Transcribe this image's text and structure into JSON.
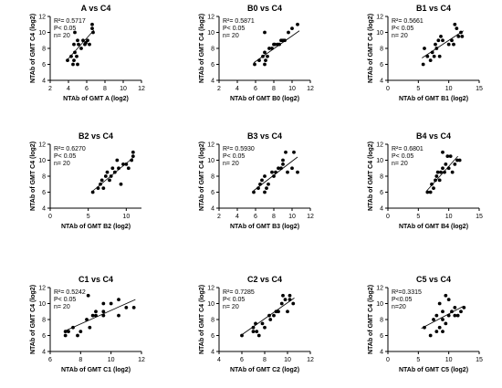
{
  "chart_data": [
    {
      "type": "scatter",
      "title": "A vs C4",
      "xlabel": "NTAb of GMT A (log2)",
      "ylabel": "NTAb of GMT C4 (log2)",
      "xlim": [
        2,
        12
      ],
      "ylim": [
        4,
        12
      ],
      "xticks": [
        2,
        4,
        6,
        8,
        10,
        12
      ],
      "yticks": [
        4,
        6,
        8,
        10,
        12
      ],
      "stats": {
        "r2": "R²= 0.5717",
        "p": "P< 0.05",
        "n": "n= 20"
      },
      "x": [
        3.9,
        4.3,
        4.5,
        4.6,
        4.7,
        4.9,
        5.0,
        4.6,
        5.1,
        5.4,
        5.6,
        5.8,
        5.9,
        6.1,
        6.3,
        6.6,
        6.6,
        6.7,
        4.7,
        5.0
      ],
      "y": [
        6.5,
        7.0,
        6.0,
        6.5,
        7.5,
        7.0,
        6.0,
        8.5,
        8.5,
        8.0,
        9.0,
        8.5,
        8.7,
        9.0,
        8.5,
        10.5,
        11.0,
        10.0,
        10.0,
        9.0
      ],
      "fit": [
        [
          3.9,
          6.6
        ],
        [
          6.8,
          10.3
        ]
      ]
    },
    {
      "type": "scatter",
      "title": "B0 vs C4",
      "xlabel": "NTAb of GMT B0 (log2)",
      "ylabel": "NTAb of GMT C4 (log2)",
      "xlim": [
        2,
        12
      ],
      "ylim": [
        4,
        12
      ],
      "xticks": [
        2,
        4,
        6,
        8,
        10,
        12
      ],
      "yticks": [
        4,
        6,
        8,
        10,
        12
      ],
      "stats": {
        "r2": "R²= 0.5871",
        "p": "P< 0.05",
        "n": "n= 20"
      },
      "x": [
        5.9,
        6.4,
        6.8,
        7.0,
        7.0,
        7.1,
        7.3,
        7.5,
        7.8,
        8.0,
        8.1,
        8.4,
        8.6,
        8.8,
        9.0,
        9.2,
        9.6,
        10.0,
        10.6,
        7.0
      ],
      "y": [
        6.0,
        6.5,
        7.0,
        6.0,
        7.5,
        6.5,
        7.0,
        8.0,
        8.0,
        8.5,
        8.5,
        8.5,
        8.5,
        9.0,
        9.0,
        9.0,
        10.0,
        10.5,
        11.0,
        10.0
      ],
      "fit": [
        [
          5.8,
          6.2
        ],
        [
          10.8,
          10.2
        ]
      ]
    },
    {
      "type": "scatter",
      "title": "B1 vs C4",
      "xlabel": "NTAb of GMT B1 (log2)",
      "ylabel": "NTAb of GMT C4 (log2)",
      "xlim": [
        0,
        15
      ],
      "ylim": [
        4,
        12
      ],
      "xticks": [
        0,
        5,
        10,
        15
      ],
      "yticks": [
        4,
        6,
        8,
        10,
        12
      ],
      "stats": {
        "r2": "R²= 0.5661",
        "p": "P< 0.05",
        "n": "n= 20"
      },
      "x": [
        5.8,
        6.0,
        6.5,
        7.0,
        7.3,
        7.6,
        7.8,
        8.0,
        8.3,
        8.5,
        8.7,
        9.0,
        10.0,
        10.5,
        11.0,
        11.3,
        11.6,
        12.0,
        12.2,
        10.8
      ],
      "y": [
        6.0,
        8.0,
        7.0,
        6.5,
        7.5,
        7.0,
        8.5,
        8.0,
        9.0,
        7.0,
        9.5,
        9.0,
        8.5,
        9.0,
        11.0,
        10.5,
        9.5,
        10.0,
        9.5,
        8.5
      ],
      "fit": [
        [
          5.6,
          6.8
        ],
        [
          12.4,
          10.2
        ]
      ]
    },
    {
      "type": "scatter",
      "title": "B2 vs C4",
      "xlabel": "NTAb of GMT B2 (log2)",
      "ylabel": "NTAb of GMT C4 (log2)",
      "xlim": [
        0,
        12
      ],
      "ylim": [
        4,
        12
      ],
      "xticks": [
        0,
        5,
        10
      ],
      "yticks": [
        4,
        6,
        8,
        10,
        12
      ],
      "stats": {
        "r2": "R²= 0.6270",
        "p": "P< 0.05",
        "n": "n= 20"
      },
      "x": [
        5.6,
        6.3,
        6.6,
        6.8,
        7.0,
        7.3,
        7.5,
        7.8,
        8.0,
        8.2,
        8.5,
        8.8,
        9.0,
        9.3,
        9.6,
        10.0,
        10.3,
        10.7,
        10.9,
        10.9
      ],
      "y": [
        6.0,
        6.5,
        7.0,
        7.5,
        6.5,
        8.0,
        8.5,
        7.5,
        8.0,
        9.0,
        8.5,
        10.0,
        9.0,
        7.0,
        9.5,
        9.5,
        9.0,
        10.0,
        10.5,
        11.0
      ],
      "fit": [
        [
          5.4,
          6.0
        ],
        [
          11.0,
          10.4
        ]
      ]
    },
    {
      "type": "scatter",
      "title": "B3 vs C4",
      "xlabel": "NTAb of GMT B3 (log2)",
      "ylabel": "NTAb of GMT C4 (log2)",
      "xlim": [
        2,
        12
      ],
      "ylim": [
        4,
        12
      ],
      "xticks": [
        2,
        4,
        6,
        8,
        10,
        12
      ],
      "yticks": [
        4,
        6,
        8,
        10,
        12
      ],
      "stats": {
        "r2": "R²= 0.5930",
        "p": "P< 0.05",
        "n": "n= 20"
      },
      "x": [
        5.8,
        6.3,
        6.5,
        6.7,
        7.0,
        7.0,
        7.2,
        7.4,
        7.8,
        8.0,
        8.2,
        8.5,
        8.8,
        9.0,
        9.0,
        9.3,
        9.5,
        10.0,
        10.2,
        10.6
      ],
      "y": [
        6.0,
        6.5,
        7.0,
        7.5,
        6.0,
        8.0,
        6.5,
        7.0,
        8.5,
        8.0,
        8.5,
        9.0,
        9.0,
        9.5,
        10.0,
        11.0,
        8.5,
        9.0,
        11.0,
        8.5
      ],
      "fit": [
        [
          5.8,
          6.2
        ],
        [
          10.6,
          10.4
        ]
      ]
    },
    {
      "type": "scatter",
      "title": "B4 vs C4",
      "xlabel": "NTAb of GMT B4 (log2)",
      "ylabel": "NTAb of GMT C4 (log2)",
      "xlim": [
        0,
        15
      ],
      "ylim": [
        4,
        12
      ],
      "xticks": [
        0,
        5,
        10,
        15
      ],
      "yticks": [
        4,
        6,
        8,
        10,
        12
      ],
      "stats": {
        "r2": "R²= 0.6801",
        "p": "P< 0.05",
        "n": "n= 20"
      },
      "x": [
        6.5,
        7.0,
        7.2,
        7.5,
        7.8,
        8.0,
        8.2,
        8.5,
        8.7,
        9.0,
        9.0,
        9.3,
        9.5,
        9.8,
        10.0,
        10.3,
        10.6,
        11.0,
        11.4,
        11.8
      ],
      "y": [
        6.0,
        6.0,
        7.0,
        6.5,
        7.5,
        8.0,
        8.5,
        7.5,
        8.5,
        9.0,
        11.0,
        8.5,
        9.5,
        10.5,
        9.0,
        10.5,
        8.5,
        9.5,
        10.0,
        10.0
      ],
      "fit": [
        [
          6.3,
          6.1
        ],
        [
          11.5,
          10.5
        ]
      ]
    },
    {
      "type": "scatter",
      "title": "C1 vs C4",
      "xlabel": "NTAb of GMT C1 (log2)",
      "ylabel": "NTAb of GMT C4 (log2)",
      "xlim": [
        6,
        12
      ],
      "ylim": [
        4,
        12
      ],
      "xticks": [
        6,
        8,
        10,
        12
      ],
      "yticks": [
        4,
        6,
        8,
        10,
        12
      ],
      "stats": {
        "r2": "R²= 0.5242",
        "p": "P< 0.05",
        "n": "n= 20"
      },
      "x": [
        7.0,
        7.0,
        7.5,
        7.8,
        8.0,
        8.4,
        8.5,
        8.6,
        8.8,
        9.0,
        9.0,
        9.5,
        9.5,
        9.5,
        10.0,
        10.5,
        10.5,
        11.0,
        11.5,
        7.2
      ],
      "y": [
        6.0,
        6.5,
        7.0,
        6.0,
        6.5,
        8.0,
        11.0,
        7.0,
        8.5,
        9.0,
        8.5,
        10.0,
        9.0,
        8.5,
        10.0,
        10.5,
        8.5,
        9.5,
        9.5,
        6.5
      ],
      "fit": [
        [
          7.0,
          6.6
        ],
        [
          11.6,
          10.5
        ]
      ]
    },
    {
      "type": "scatter",
      "title": "C2 vs C4",
      "xlabel": "NTAb of GMT C2 (log2)",
      "ylabel": "NTAb of GMT C4 (log2)",
      "xlim": [
        4,
        12
      ],
      "ylim": [
        4,
        12
      ],
      "xticks": [
        4,
        6,
        8,
        10,
        12
      ],
      "yticks": [
        4,
        6,
        8,
        10,
        12
      ],
      "stats": {
        "r2": "R²= 0.7285",
        "p": "P< 0.05",
        "n": "n= 20"
      },
      "x": [
        6.0,
        7.0,
        7.0,
        7.2,
        7.5,
        7.8,
        8.0,
        8.4,
        8.5,
        8.8,
        9.0,
        9.2,
        9.5,
        9.6,
        9.8,
        10.0,
        10.2,
        10.5,
        10.2,
        7.3
      ],
      "y": [
        6.0,
        6.5,
        7.0,
        7.5,
        6.0,
        7.5,
        7.0,
        8.5,
        8.0,
        8.5,
        9.0,
        9.0,
        10.0,
        11.0,
        10.5,
        9.0,
        11.0,
        10.0,
        10.5,
        6.5
      ],
      "fit": [
        [
          5.9,
          6.0
        ],
        [
          10.6,
          10.7
        ]
      ]
    },
    {
      "type": "scatter",
      "title": "C5 vs C4",
      "xlabel": "NTAb of GMT C5 (log2)",
      "ylabel": "NTAb of GMT C4 (log2)",
      "xlim": [
        0,
        15
      ],
      "ylim": [
        4,
        12
      ],
      "xticks": [
        0,
        5,
        10,
        15
      ],
      "yticks": [
        4,
        6,
        8,
        10,
        12
      ],
      "stats": {
        "r2": "R²=0.3315",
        "p": "P<0.05",
        "n": "n=20"
      },
      "x": [
        6.0,
        7.0,
        7.5,
        8.0,
        8.0,
        8.5,
        8.5,
        9.0,
        9.0,
        9.0,
        9.5,
        9.5,
        10.0,
        10.0,
        10.5,
        11.0,
        11.0,
        11.5,
        12.0,
        12.5
      ],
      "y": [
        7.0,
        6.0,
        8.0,
        6.5,
        8.5,
        10.0,
        7.0,
        6.5,
        9.0,
        8.0,
        11.0,
        7.5,
        10.5,
        8.5,
        9.0,
        8.5,
        9.5,
        8.5,
        9.0,
        9.5
      ],
      "fit": [
        [
          5.5,
          6.9
        ],
        [
          12.5,
          9.7
        ]
      ]
    }
  ]
}
